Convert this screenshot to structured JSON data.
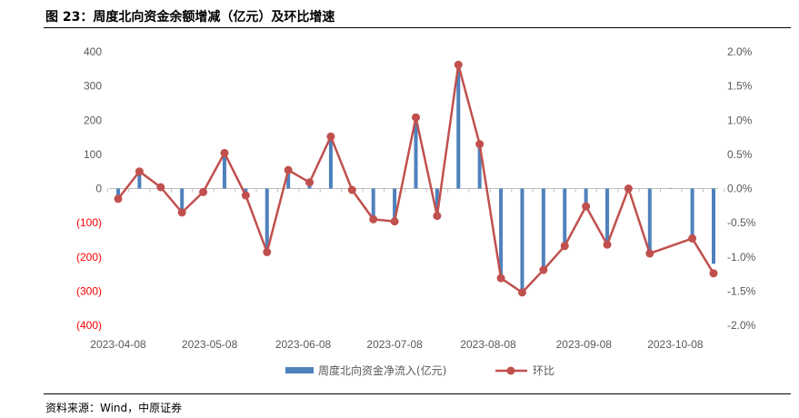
{
  "title": "图 23：周度北向资金余额增减（亿元）及环比增速",
  "source": "资料来源：Wind，中原证券",
  "chart_data": {
    "type": "bar+line",
    "x": [
      "2023-04-07",
      "2023-04-14",
      "2023-04-21",
      "2023-04-28",
      "2023-05-05",
      "2023-05-12",
      "2023-05-19",
      "2023-05-26",
      "2023-06-02",
      "2023-06-09",
      "2023-06-16",
      "2023-06-23",
      "2023-06-30",
      "2023-07-07",
      "2023-07-14",
      "2023-07-21",
      "2023-07-28",
      "2023-08-04",
      "2023-08-11",
      "2023-08-18",
      "2023-08-25",
      "2023-09-01",
      "2023-09-08",
      "2023-09-15",
      "2023-09-22",
      "2023-09-29",
      "2023-10-06",
      "2023-10-13",
      "2023-10-20"
    ],
    "x_tick_labels": [
      "2023-04-08",
      "2023-05-08",
      "2023-06-08",
      "2023-07-08",
      "2023-08-08",
      "2023-09-08",
      "2023-10-08"
    ],
    "left_axis": {
      "ticks": [
        400,
        300,
        200,
        100,
        0,
        -100,
        -200,
        -300,
        -400
      ],
      "tick_labels": [
        "400",
        "300",
        "200",
        "100",
        "0",
        "(100)",
        "(200)",
        "(300)",
        "(400)"
      ],
      "negative_color": "#FF0000",
      "positive_color": "#595959",
      "ylim": [
        -400,
        400
      ]
    },
    "right_axis": {
      "ticks": [
        2.0,
        1.5,
        1.0,
        0.5,
        0.0,
        -0.5,
        -1.0,
        -1.5,
        -2.0
      ],
      "tick_labels": [
        "2.0%",
        "1.5%",
        "1.0%",
        "0.5%",
        "0.0%",
        "-0.5%",
        "-1.0%",
        "-1.5%",
        "-2.0%"
      ],
      "ylim": [
        -2.0,
        2.0
      ]
    },
    "series": [
      {
        "name": "周度北向资金净流入(亿元)",
        "kind": "bar",
        "axis": "left",
        "color": "#4F81BD",
        "values": [
          -35,
          50,
          0,
          -65,
          -15,
          100,
          -20,
          -185,
          55,
          15,
          150,
          -5,
          -95,
          -95,
          205,
          -75,
          360,
          125,
          -255,
          -300,
          -235,
          -170,
          -55,
          -155,
          0,
          -185,
          0,
          -140,
          -220
        ]
      },
      {
        "name": "环比",
        "kind": "line",
        "axis": "right",
        "color": "#C0504D",
        "values": [
          -0.15,
          0.25,
          0.02,
          -0.35,
          -0.05,
          0.52,
          -0.1,
          -0.93,
          0.27,
          0.09,
          0.76,
          -0.02,
          -0.45,
          -0.48,
          1.04,
          -0.4,
          1.81,
          0.65,
          -1.31,
          -1.52,
          -1.19,
          -0.84,
          -0.26,
          -0.82,
          0.0,
          -0.95,
          null,
          -0.73,
          -1.24
        ]
      }
    ]
  }
}
